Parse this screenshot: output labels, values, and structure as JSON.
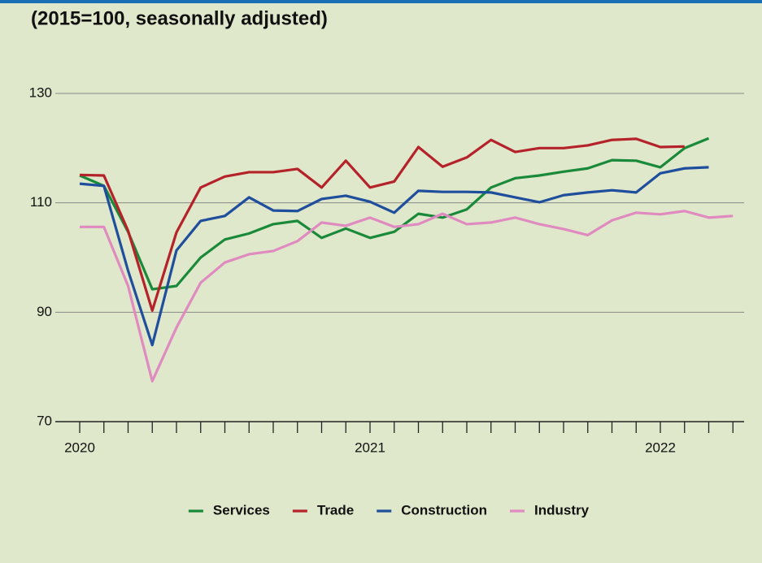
{
  "chart_data": {
    "type": "line",
    "title": "(2015=100, seasonally adjusted)",
    "categories": [
      "2020",
      null,
      null,
      null,
      null,
      null,
      null,
      null,
      null,
      null,
      null,
      null,
      "2021",
      null,
      null,
      null,
      null,
      null,
      null,
      null,
      null,
      null,
      null,
      null,
      "2022",
      null,
      null,
      null
    ],
    "ylim": [
      70,
      130
    ],
    "yticks": [
      70,
      90,
      110,
      130
    ],
    "grid": true,
    "series": [
      {
        "name": "Services",
        "color": "#1a8a3a",
        "values": [
          115.0,
          113.1,
          104.7,
          94.2,
          94.8,
          100.0,
          103.3,
          104.4,
          106.1,
          106.7,
          103.6,
          105.3,
          103.6,
          104.7,
          108.0,
          107.3,
          108.8,
          112.8,
          114.5,
          115.0,
          115.7,
          116.3,
          117.8,
          117.7,
          116.5,
          120.0,
          121.8,
          null
        ]
      },
      {
        "name": "Trade",
        "color": "#b5232a",
        "values": [
          115.1,
          115.0,
          104.9,
          90.3,
          104.6,
          112.8,
          114.8,
          115.6,
          115.6,
          116.2,
          112.8,
          117.7,
          112.8,
          113.9,
          120.2,
          116.6,
          118.3,
          121.5,
          119.3,
          120.0,
          120.0,
          120.5,
          121.5,
          121.7,
          120.2,
          120.3,
          null,
          null
        ]
      },
      {
        "name": "Construction",
        "color": "#1f4e9c",
        "values": [
          113.5,
          113.1,
          97.6,
          84.0,
          101.3,
          106.7,
          107.6,
          111.0,
          108.6,
          108.5,
          110.7,
          111.3,
          110.2,
          108.2,
          112.2,
          112.0,
          112.0,
          111.9,
          111.0,
          110.1,
          111.4,
          111.9,
          112.3,
          111.9,
          115.4,
          116.3,
          116.5,
          null
        ]
      },
      {
        "name": "Industry",
        "color": "#e08bc0",
        "values": [
          105.6,
          105.6,
          94.8,
          77.4,
          87.2,
          95.4,
          99.1,
          100.6,
          101.2,
          103.0,
          106.4,
          105.8,
          107.3,
          105.6,
          106.1,
          108.0,
          106.1,
          106.4,
          107.3,
          106.1,
          105.2,
          104.1,
          106.8,
          108.2,
          107.9,
          108.5,
          107.3,
          107.6
        ]
      }
    ]
  }
}
